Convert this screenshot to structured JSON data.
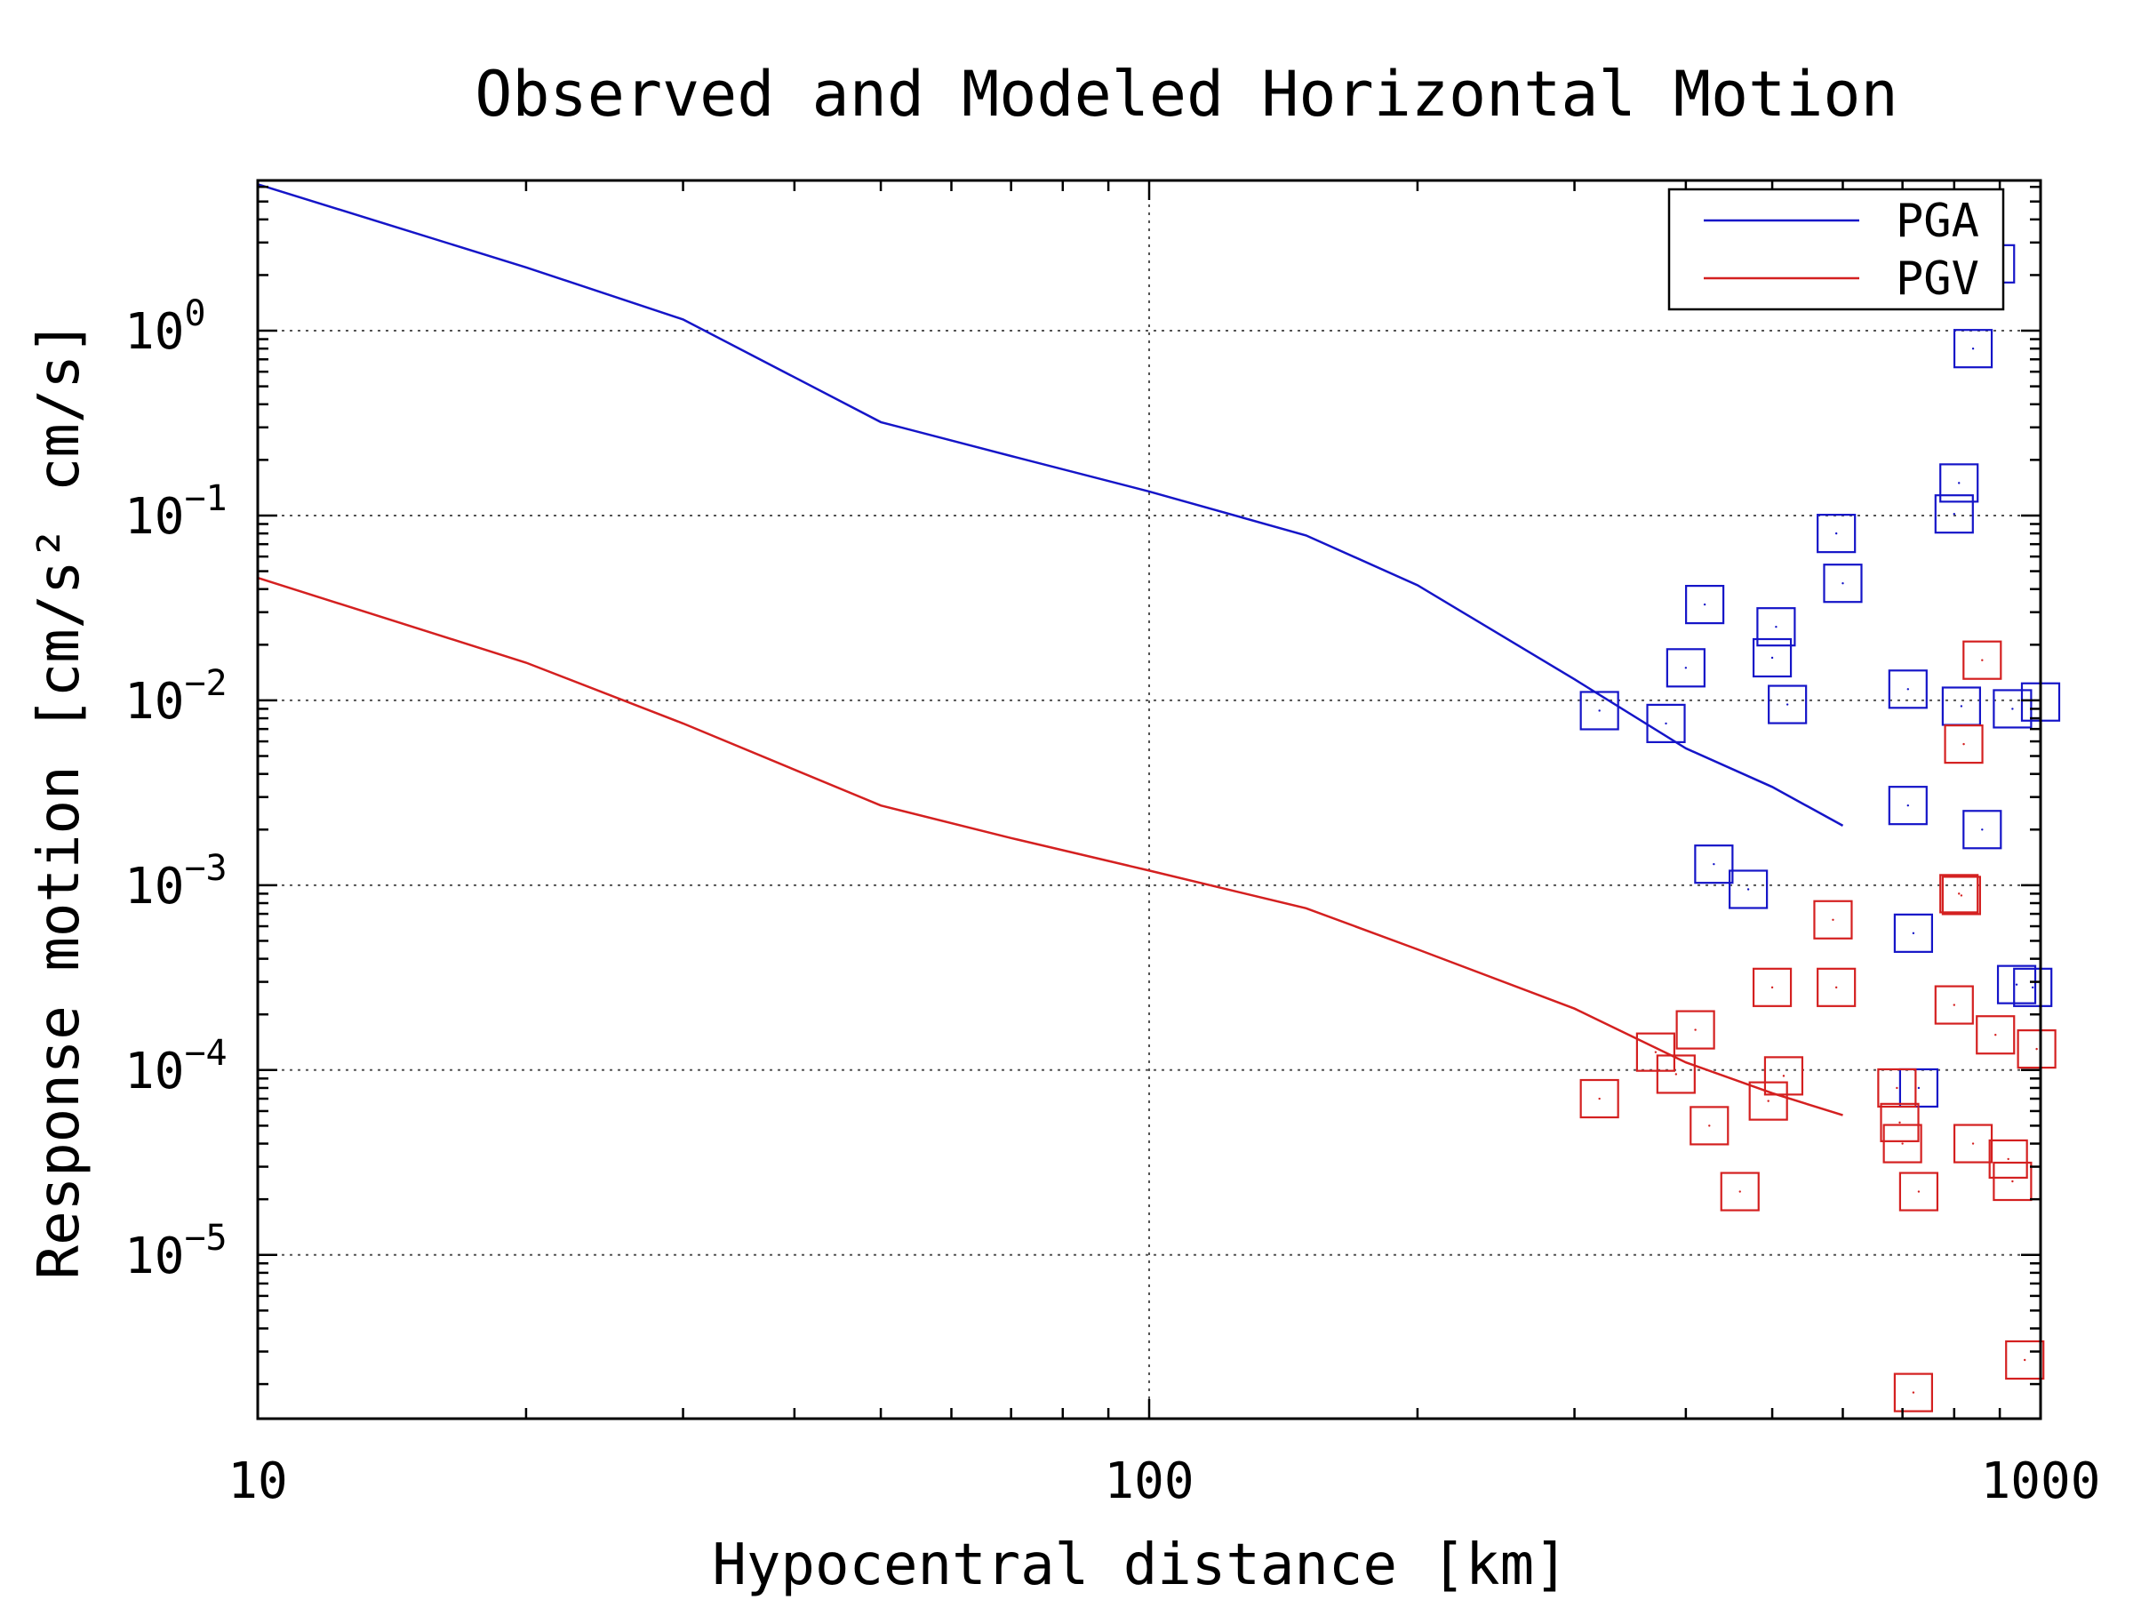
{
  "chart_data": {
    "type": "scatter",
    "title": "Observed and Modeled Horizontal Motion",
    "xlabel": "Hypocentral distance [km]",
    "ylabel": "Response motion  [cm/s²  cm/s]",
    "xscale": "log",
    "yscale": "log",
    "xlim": [
      10,
      1000
    ],
    "ylim": [
      1.3e-06,
      6.5
    ],
    "x_ticks": [
      {
        "value": 10,
        "label": "10"
      },
      {
        "value": 100,
        "label": "100"
      },
      {
        "value": 1000,
        "label": "1000"
      }
    ],
    "y_ticks": [
      {
        "value": 1,
        "base": "10",
        "exp": "0"
      },
      {
        "value": 0.1,
        "base": "10",
        "exp": "−1"
      },
      {
        "value": 0.01,
        "base": "10",
        "exp": "−2"
      },
      {
        "value": 0.001,
        "base": "10",
        "exp": "−3"
      },
      {
        "value": 0.0001,
        "base": "10",
        "exp": "−4"
      },
      {
        "value": 1e-05,
        "base": "10",
        "exp": "−5"
      }
    ],
    "grid": true,
    "legend_position": "top-right",
    "series": [
      {
        "name": "PGA",
        "kind": "line",
        "color": "#1515c8",
        "x": [
          10,
          20,
          30,
          50,
          70,
          100,
          150,
          200,
          300,
          400,
          500,
          600
        ],
        "y": [
          6.2,
          2.2,
          1.15,
          0.32,
          0.21,
          0.135,
          0.078,
          0.042,
          0.013,
          0.0055,
          0.0034,
          0.0021
        ]
      },
      {
        "name": "PGV",
        "kind": "line",
        "color": "#d42020",
        "x": [
          10,
          20,
          30,
          50,
          70,
          100,
          150,
          200,
          300,
          400,
          500,
          600
        ],
        "y": [
          0.046,
          0.016,
          0.0075,
          0.0027,
          0.0018,
          0.0012,
          0.00075,
          0.00045,
          0.000215,
          0.00011,
          7.5e-05,
          5.7e-05
        ]
      },
      {
        "name": "",
        "kind": "markers",
        "color": "#1515c8",
        "x": [
          320,
          380,
          400,
          420,
          430,
          470,
          500,
          505,
          520,
          590,
          600,
          710,
          710,
          720,
          730,
          800,
          810,
          815,
          840,
          860,
          890,
          930,
          940,
          980,
          1000
        ],
        "y": [
          0.0088,
          0.0075,
          0.015,
          0.033,
          0.0013,
          0.00095,
          0.017,
          0.025,
          0.0095,
          0.08,
          0.043,
          0.0115,
          0.0027,
          0.00055,
          8e-05,
          0.102,
          0.15,
          0.0093,
          0.8,
          0.002,
          2.3,
          0.009,
          0.00029,
          0.00028,
          0.0098
        ]
      },
      {
        "name": "",
        "kind": "markers",
        "color": "#d42020",
        "x": [
          320,
          370,
          390,
          410,
          425,
          460,
          495,
          500,
          515,
          585,
          590,
          690,
          695,
          700,
          720,
          730,
          800,
          810,
          815,
          820,
          840,
          860,
          890,
          920,
          930,
          960,
          990
        ],
        "y": [
          7e-05,
          0.000125,
          9.5e-05,
          0.000165,
          5e-05,
          2.2e-05,
          6.8e-05,
          0.00028,
          9.3e-05,
          0.00065,
          0.00028,
          8e-05,
          5.2e-05,
          4e-05,
          1.8e-06,
          2.2e-05,
          0.000225,
          0.0009,
          0.00088,
          0.0058,
          4e-05,
          0.0165,
          0.000155,
          3.3e-05,
          2.5e-05,
          2.7e-06,
          0.00013
        ]
      }
    ]
  }
}
